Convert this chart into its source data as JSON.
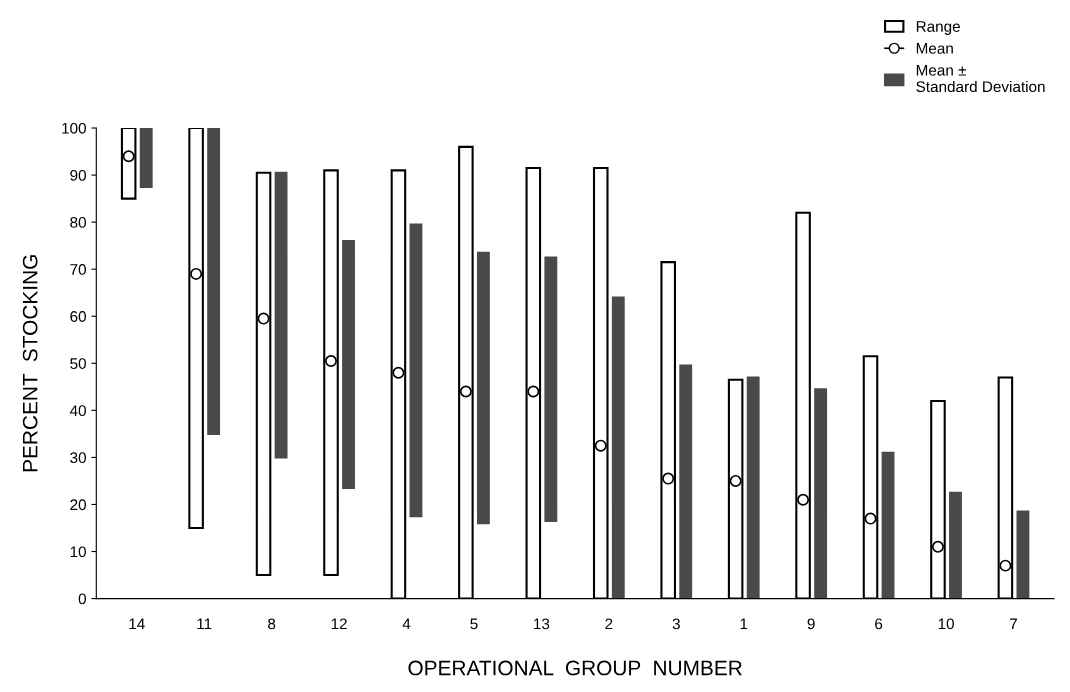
{
  "chart_data": {
    "type": "bar",
    "xlabel": "OPERATIONAL  GROUP  NUMBER",
    "ylabel": "PERCENT  STOCKING",
    "categories": [
      "14",
      "11",
      "8",
      "12",
      "4",
      "5",
      "13",
      "2",
      "3",
      "1",
      "9",
      "6",
      "10",
      "7"
    ],
    "ylim": [
      0,
      100
    ],
    "yticks": [
      0,
      10,
      20,
      30,
      40,
      50,
      60,
      70,
      80,
      90,
      100
    ],
    "grid": false,
    "legend": "top right",
    "series": [
      {
        "name": "Range",
        "color": "#ffffff",
        "base": [
          85,
          15,
          5,
          5,
          0,
          0,
          0,
          0,
          0,
          0,
          0,
          0,
          0,
          0
        ],
        "values": [
          15,
          85,
          85.5,
          86,
          91,
          96,
          91.5,
          91.5,
          71.5,
          46.5,
          82,
          51.5,
          42,
          47
        ]
      },
      {
        "name": "Mean",
        "type": "scatter",
        "marker": "circle",
        "color": "#ffffff",
        "x": [
          "14",
          "11",
          "8",
          "12",
          "4",
          "5",
          "13",
          "2",
          "3",
          "1",
          "9",
          "6",
          "10",
          "7"
        ],
        "values": [
          94,
          69,
          59.5,
          50.5,
          48,
          44,
          44,
          32.5,
          25.5,
          25,
          21,
          17,
          11,
          7
        ]
      },
      {
        "name": "Mean ±\nStandard Deviation",
        "color": "#4a4a4a",
        "base": [
          87.5,
          35,
          30,
          23.5,
          17.5,
          16,
          16.5,
          0,
          0,
          0,
          0,
          0,
          0,
          0
        ],
        "values": [
          12.5,
          65,
          60.5,
          52.5,
          62,
          57.5,
          56,
          64,
          49.5,
          47,
          44.5,
          31,
          22.5,
          18.5
        ]
      }
    ]
  }
}
